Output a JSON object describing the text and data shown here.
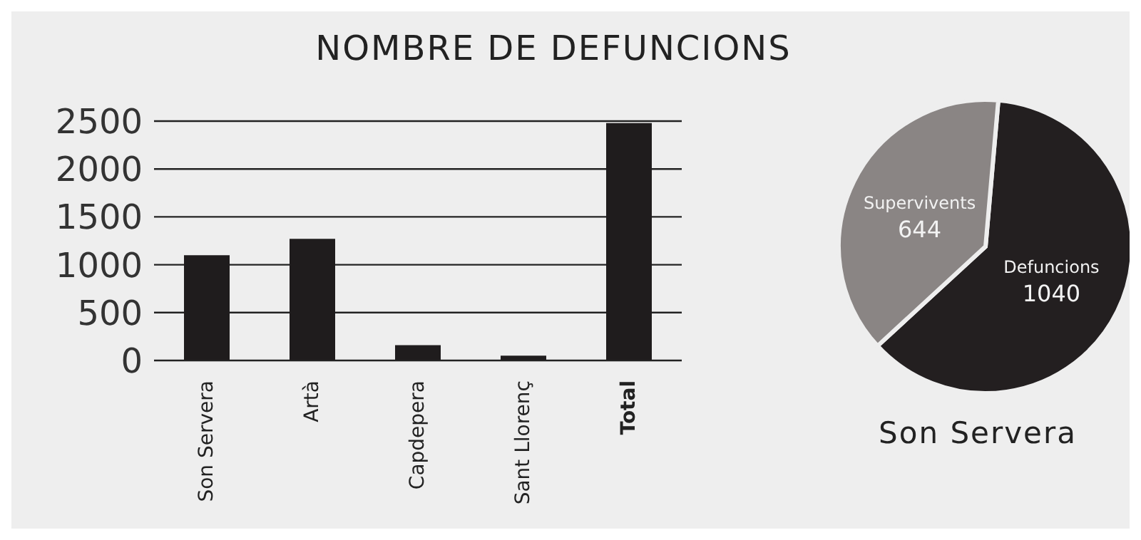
{
  "chart_data": [
    {
      "type": "bar",
      "title": "NOMBRE DE DEFUNCIONS",
      "categories": [
        "Son Servera",
        "Artà",
        "Capdepera",
        "Sant Llorenç",
        "Total"
      ],
      "values": [
        1100,
        1270,
        160,
        50,
        2480
      ],
      "color": "#1f1c1d",
      "ylim": [
        0,
        2500
      ],
      "yticks": [
        0,
        500,
        1000,
        1500,
        2000,
        2500
      ],
      "grid": "y"
    },
    {
      "type": "pie",
      "title": "Son Servera",
      "categories": [
        "Defuncions",
        "Supervivents"
      ],
      "values": [
        1040,
        644
      ],
      "colors": [
        "#231f20",
        "#8a8584"
      ],
      "data_labels": true
    }
  ]
}
